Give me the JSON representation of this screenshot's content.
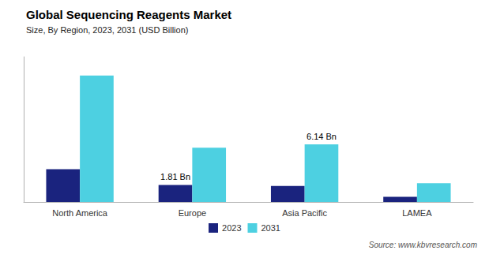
{
  "chart_data": {
    "type": "bar",
    "title": "Global Sequencing Reagents Market",
    "subtitle": "Size, By Region, 2023, 2031 (USD Billion)",
    "source": "Source: www.kbvresearch.com",
    "categories": [
      "North America",
      "Europe",
      "Asia Pacific",
      "LAMEA"
    ],
    "series": [
      {
        "name": "2023",
        "color": "#1a237e",
        "values": [
          3.5,
          1.81,
          1.7,
          0.55
        ]
      },
      {
        "name": "2031",
        "color": "#4dd0e1",
        "values": [
          13.5,
          5.8,
          6.14,
          2.0
        ]
      }
    ],
    "annotations": [
      {
        "text": "1.81 Bn",
        "x": "Europe",
        "series": "2023",
        "value": 1.81
      },
      {
        "text": "6.14 Bn",
        "x": "Asia Pacific",
        "series": "2031",
        "value": 6.14
      }
    ],
    "ylim": [
      0,
      15.5
    ],
    "tick_labels": "x",
    "grid": false,
    "legend": "bottom"
  }
}
